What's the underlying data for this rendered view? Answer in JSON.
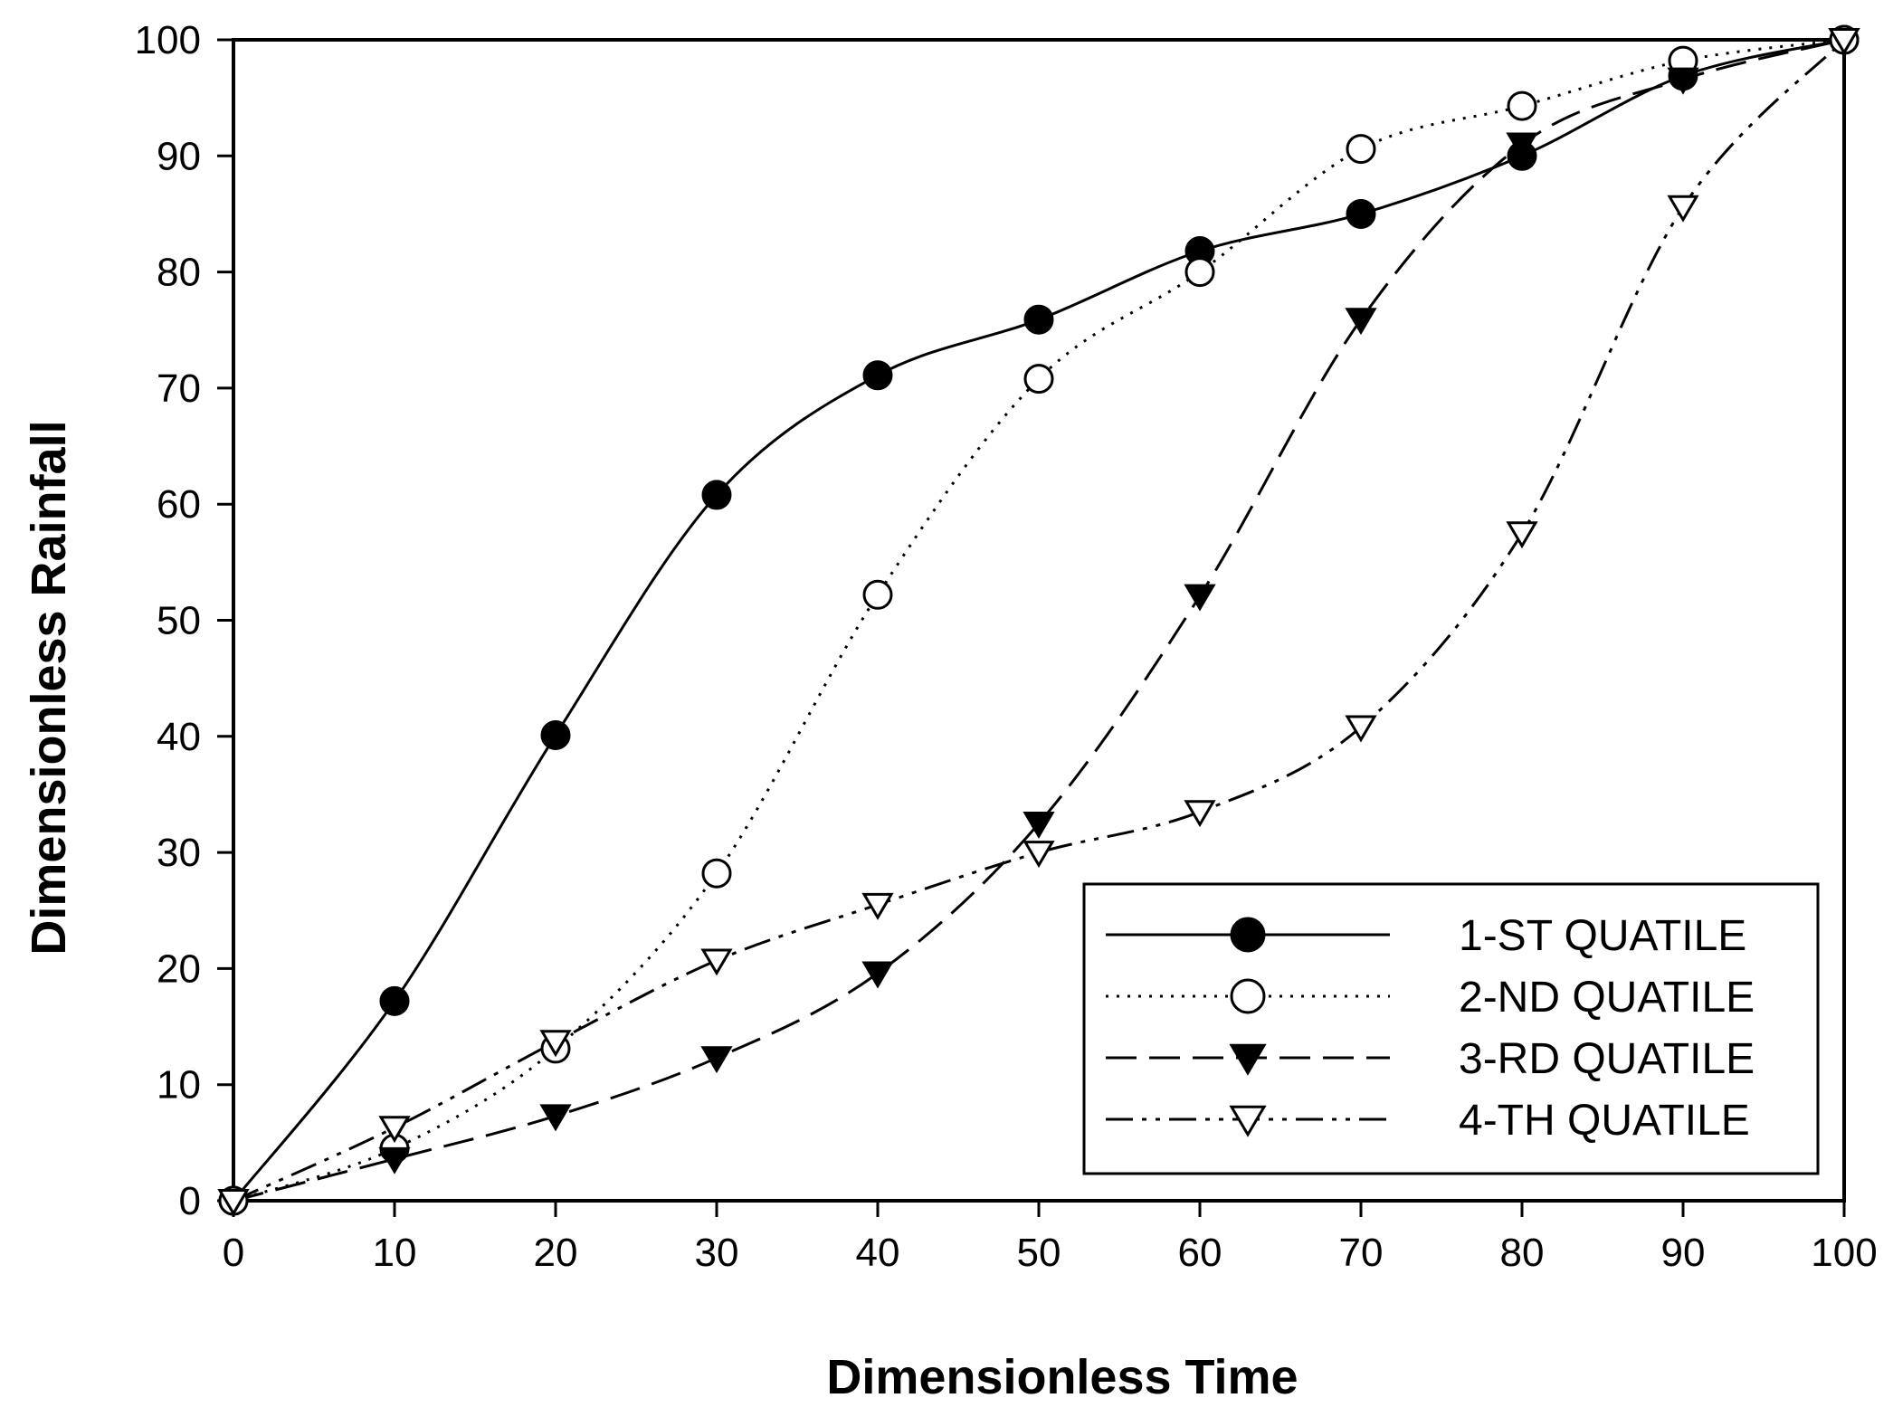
{
  "chart_data": {
    "type": "line",
    "title": "",
    "xlabel": "Dimensionless Time",
    "ylabel": "Dimensionless Rainfall",
    "xlim": [
      0,
      100
    ],
    "ylim": [
      0,
      100
    ],
    "x_ticks": [
      0,
      10,
      20,
      30,
      40,
      50,
      60,
      70,
      80,
      90,
      100
    ],
    "y_ticks": [
      0,
      10,
      20,
      30,
      40,
      50,
      60,
      70,
      80,
      90,
      100
    ],
    "x_tick_labels": [
      "0",
      "10",
      "20",
      "30",
      "40",
      "50",
      "60",
      "70",
      "80",
      "90",
      "100"
    ],
    "y_tick_labels": [
      "0",
      "10",
      "20",
      "30",
      "40",
      "50",
      "60",
      "70",
      "80",
      "90",
      "100"
    ],
    "grid": false,
    "legend_position": "bottom-right",
    "x": [
      0,
      10,
      20,
      30,
      40,
      50,
      60,
      70,
      80,
      90,
      100
    ],
    "series": [
      {
        "name": "1-ST QUATILE",
        "values": [
          0,
          17.2,
          40.1,
          60.8,
          71.1,
          75.9,
          81.8,
          85.0,
          90.0,
          96.9,
          100
        ],
        "marker": "filled-circle",
        "line_style": "solid",
        "color": "#000000"
      },
      {
        "name": "2-ND QUATILE",
        "values": [
          0,
          4.5,
          13.1,
          28.2,
          52.2,
          70.8,
          80.0,
          90.6,
          94.3,
          98.2,
          100
        ],
        "marker": "open-circle",
        "line_style": "dotted",
        "color": "#000000"
      },
      {
        "name": "3-RD QUATILE",
        "values": [
          0,
          3.6,
          7.3,
          12.3,
          19.6,
          32.5,
          52.1,
          75.9,
          91.0,
          96.6,
          100
        ],
        "marker": "filled-triangle-down",
        "line_style": "dashed",
        "color": "#000000"
      },
      {
        "name": "4-TH QUATILE",
        "values": [
          0,
          6.3,
          13.7,
          20.7,
          25.5,
          30.0,
          33.5,
          40.8,
          57.5,
          85.6,
          100
        ],
        "marker": "open-triangle-down",
        "line_style": "dash-dot-dot",
        "color": "#000000"
      }
    ]
  }
}
